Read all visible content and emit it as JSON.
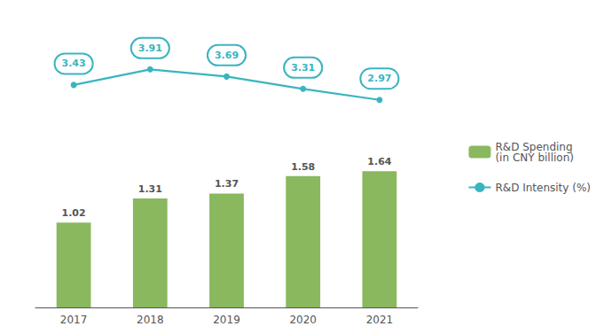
{
  "chart_data": {
    "type": "bar",
    "categories": [
      "2017",
      "2018",
      "2019",
      "2020",
      "2021"
    ],
    "series": [
      {
        "name": "R&D Spending\n(in CNY billion)",
        "type": "bar",
        "color": "#8ab85e",
        "values": [
          1.02,
          1.31,
          1.37,
          1.58,
          1.64
        ]
      },
      {
        "name": "R&D Intensity (%)",
        "type": "line",
        "color": "#3ab5c0",
        "marker": "circle",
        "axis": "y2",
        "values": [
          3.43,
          3.91,
          3.69,
          3.31,
          2.97
        ]
      }
    ],
    "ylim": [
      0,
      2.1
    ],
    "y2lim": [
      2.5,
      5.5
    ],
    "data_labels": true,
    "tick_labels": "x",
    "grid": false,
    "legend": "right"
  }
}
